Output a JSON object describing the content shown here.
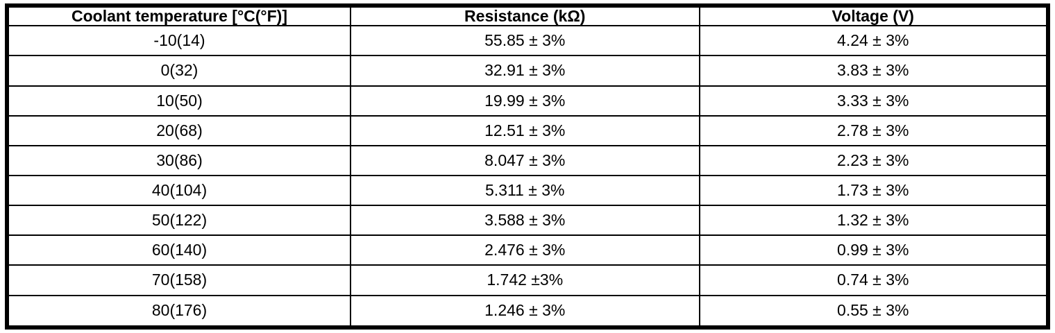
{
  "table": {
    "columns": [
      "Coolant temperature [°C(°F)]",
      "Resistance (kΩ)",
      "Voltage (V)"
    ],
    "rows": [
      [
        "-10(14)",
        "55.85 ± 3%",
        "4.24 ± 3%"
      ],
      [
        "0(32)",
        "32.91 ± 3%",
        "3.83 ± 3%"
      ],
      [
        "10(50)",
        "19.99 ± 3%",
        "3.33 ± 3%"
      ],
      [
        "20(68)",
        "12.51 ± 3%",
        "2.78 ± 3%"
      ],
      [
        "30(86)",
        "8.047 ± 3%",
        "2.23 ± 3%"
      ],
      [
        "40(104)",
        "5.311 ± 3%",
        "1.73 ± 3%"
      ],
      [
        "50(122)",
        "3.588 ± 3%",
        "1.32 ± 3%"
      ],
      [
        "60(140)",
        "2.476 ± 3%",
        "0.99 ± 3%"
      ],
      [
        "70(158)",
        "1.742 ±3%",
        "0.74 ± 3%"
      ],
      [
        "80(176)",
        "1.246 ± 3%",
        "0.55 ± 3%"
      ]
    ],
    "colors": {
      "border": "#000000",
      "background": "#ffffff",
      "text": "#000000"
    }
  }
}
